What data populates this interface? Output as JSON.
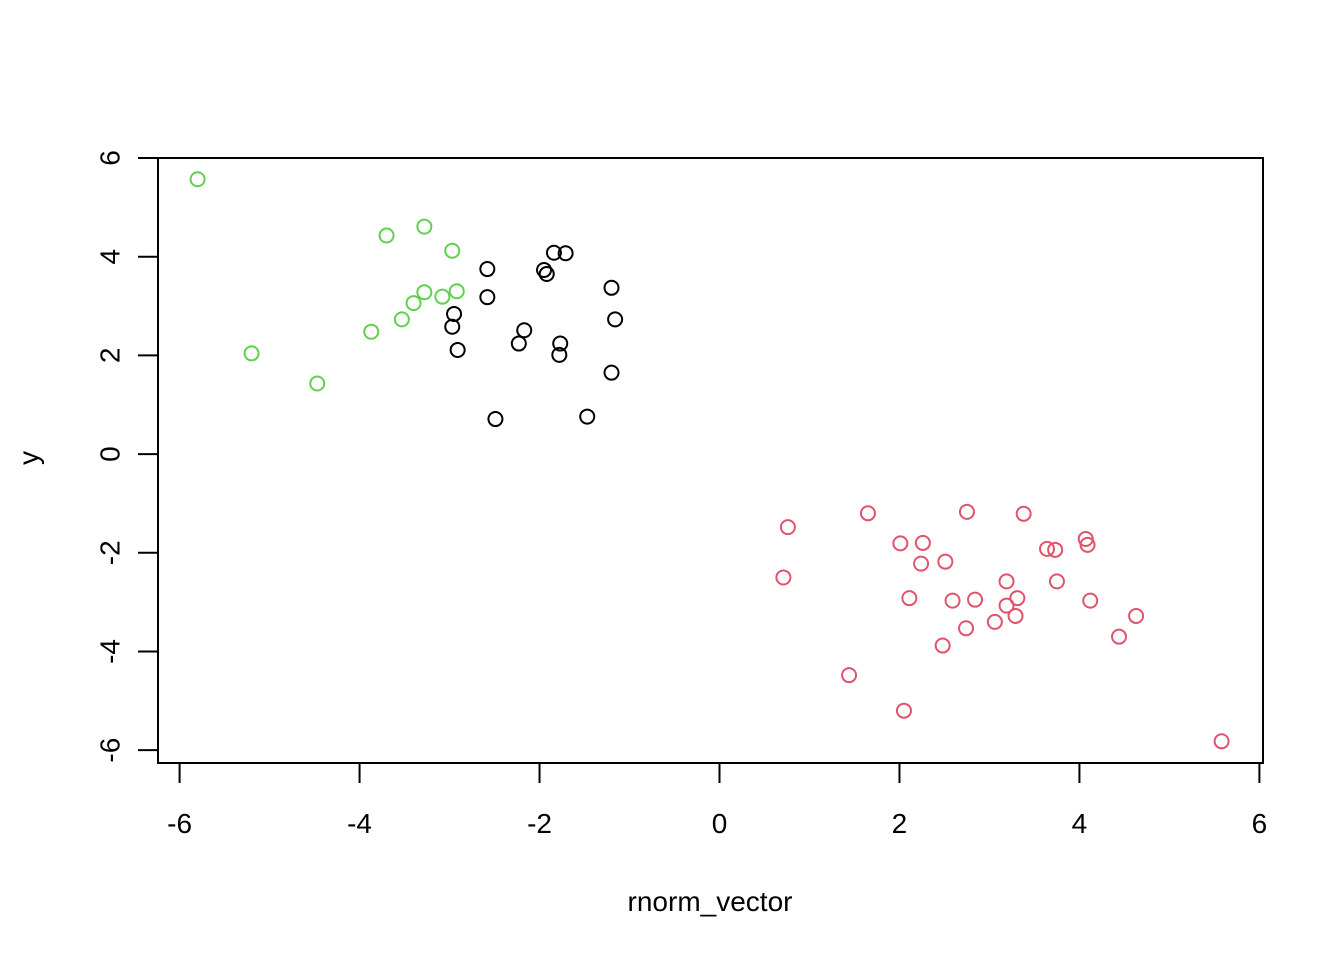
{
  "chart_data": {
    "type": "scatter",
    "xlabel": "rnorm_vector",
    "ylabel": "y",
    "xlim": [
      -6.24,
      6.04
    ],
    "ylim": [
      -6.26,
      6.0
    ],
    "xticks": [
      -6,
      -4,
      -2,
      0,
      2,
      4,
      6
    ],
    "yticks": [
      -6,
      -4,
      -2,
      0,
      2,
      4,
      6
    ],
    "grid": false,
    "legend": "none",
    "marker": "open-circle",
    "series": [
      {
        "color": "#000000",
        "points": [
          [
            -2.58,
            3.75
          ],
          [
            -1.95,
            3.73
          ],
          [
            -1.92,
            3.65
          ],
          [
            -1.84,
            4.08
          ],
          [
            -1.71,
            4.07
          ],
          [
            -1.2,
            3.37
          ],
          [
            -2.58,
            3.18
          ],
          [
            -2.95,
            2.84
          ],
          [
            -2.97,
            2.58
          ],
          [
            -1.16,
            2.73
          ],
          [
            -2.17,
            2.51
          ],
          [
            -2.23,
            2.24
          ],
          [
            -1.77,
            2.24
          ],
          [
            -1.78,
            2.01
          ],
          [
            -2.91,
            2.11
          ],
          [
            -1.2,
            1.65
          ],
          [
            -2.49,
            0.71
          ],
          [
            -1.47,
            0.76
          ]
        ]
      },
      {
        "color": "#DF536B",
        "points": [
          [
            0.76,
            -1.48
          ],
          [
            1.65,
            -1.2
          ],
          [
            2.75,
            -1.17
          ],
          [
            3.38,
            -1.21
          ],
          [
            2.01,
            -1.81
          ],
          [
            2.26,
            -1.8
          ],
          [
            3.64,
            -1.92
          ],
          [
            3.73,
            -1.94
          ],
          [
            4.07,
            -1.72
          ],
          [
            4.09,
            -1.84
          ],
          [
            2.24,
            -2.22
          ],
          [
            2.51,
            -2.18
          ],
          [
            0.71,
            -2.5
          ],
          [
            3.19,
            -2.58
          ],
          [
            3.75,
            -2.58
          ],
          [
            2.11,
            -2.92
          ],
          [
            2.59,
            -2.97
          ],
          [
            2.84,
            -2.95
          ],
          [
            3.19,
            -3.07
          ],
          [
            3.31,
            -2.92
          ],
          [
            4.12,
            -2.97
          ],
          [
            3.29,
            -3.28
          ],
          [
            3.06,
            -3.4
          ],
          [
            2.74,
            -3.53
          ],
          [
            4.63,
            -3.28
          ],
          [
            4.44,
            -3.7
          ],
          [
            2.48,
            -3.88
          ],
          [
            1.44,
            -4.48
          ],
          [
            2.05,
            -5.2
          ],
          [
            5.58,
            -5.82
          ]
        ]
      },
      {
        "color": "#61D04F",
        "points": [
          [
            -5.8,
            5.57
          ],
          [
            -3.28,
            4.61
          ],
          [
            -3.7,
            4.43
          ],
          [
            -2.97,
            4.12
          ],
          [
            -3.28,
            3.28
          ],
          [
            -2.92,
            3.3
          ],
          [
            -3.08,
            3.19
          ],
          [
            -3.4,
            3.06
          ],
          [
            -3.53,
            2.73
          ],
          [
            -3.87,
            2.48
          ],
          [
            -5.2,
            2.04
          ],
          [
            -4.47,
            1.43
          ]
        ]
      }
    ]
  }
}
